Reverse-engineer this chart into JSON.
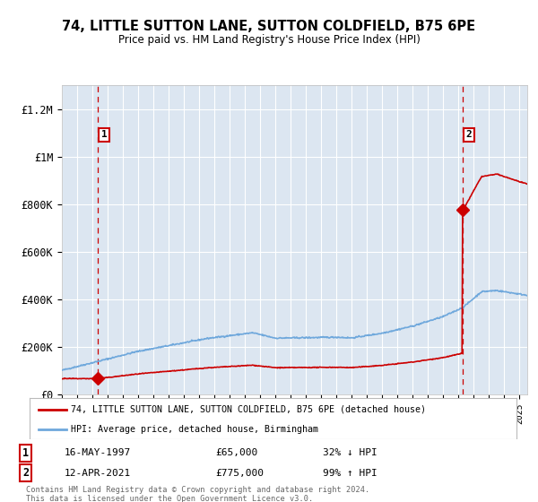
{
  "title": "74, LITTLE SUTTON LANE, SUTTON COLDFIELD, B75 6PE",
  "subtitle": "Price paid vs. HM Land Registry's House Price Index (HPI)",
  "ylim": [
    0,
    1300000
  ],
  "xlim_start": 1995.0,
  "xlim_end": 2025.5,
  "bg_color": "#dce6f1",
  "sale1_x": 1997.37,
  "sale1_y": 65000,
  "sale2_x": 2021.28,
  "sale2_y": 775000,
  "sale1_label": "16-MAY-1997",
  "sale1_price": "£65,000",
  "sale1_hpi": "32% ↓ HPI",
  "sale2_label": "12-APR-2021",
  "sale2_price": "£775,000",
  "sale2_hpi": "99% ↑ HPI",
  "legend_line1": "74, LITTLE SUTTON LANE, SUTTON COLDFIELD, B75 6PE (detached house)",
  "legend_line2": "HPI: Average price, detached house, Birmingham",
  "footer": "Contains HM Land Registry data © Crown copyright and database right 2024.\nThis data is licensed under the Open Government Licence v3.0.",
  "yticks": [
    0,
    200000,
    400000,
    600000,
    800000,
    1000000,
    1200000
  ],
  "ytick_labels": [
    "£0",
    "£200K",
    "£400K",
    "£600K",
    "£800K",
    "£1M",
    "£1.2M"
  ],
  "red_line_color": "#cc0000",
  "blue_line_color": "#6fa8dc"
}
